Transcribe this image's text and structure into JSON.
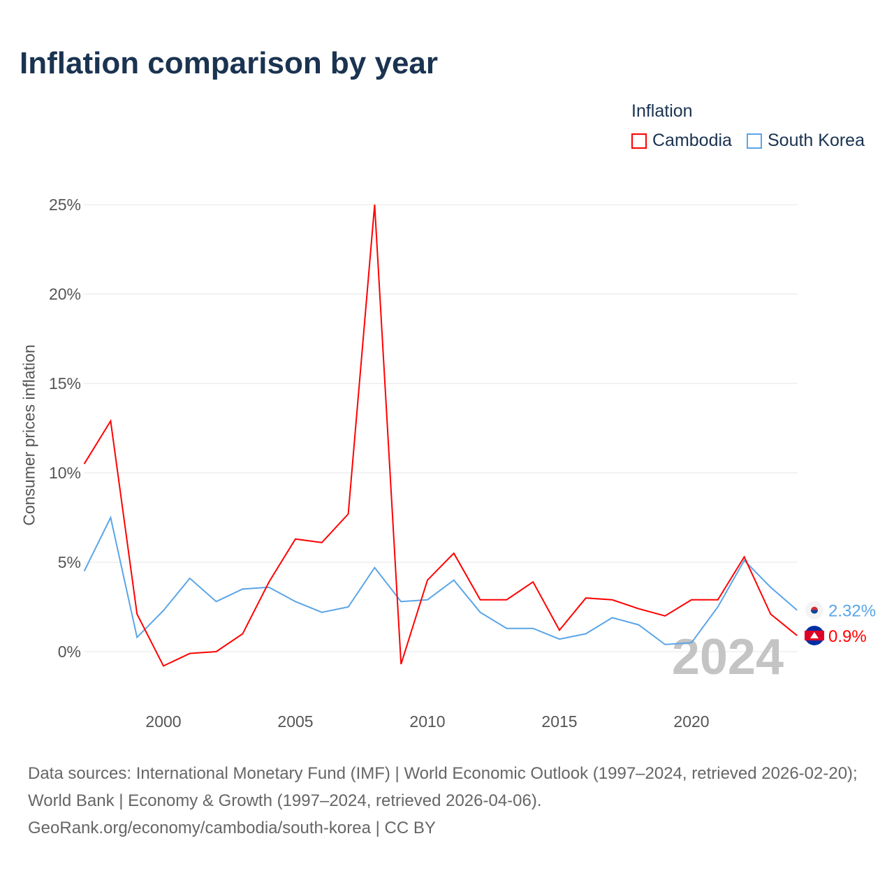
{
  "title": "Inflation comparison by year",
  "legend": {
    "title": "Inflation",
    "items": [
      {
        "label": "Cambodia",
        "color": "#ff0000"
      },
      {
        "label": "South Korea",
        "color": "#5aa5e8"
      }
    ]
  },
  "year_label": "2024",
  "end_labels": {
    "south_korea": "2.32%",
    "cambodia": "0.9%"
  },
  "source_lines": [
    "Data sources: International Monetary Fund (IMF) | World Economic Outlook (1997–2024, retrieved 2026-02-20); World Bank | Economy & Growth (1997–2024, retrieved 2026-04-06).",
    "GeoRank.org/economy/cambodia/south-korea | CC BY"
  ],
  "chart_data": {
    "type": "line",
    "title": "Inflation comparison by year",
    "xlabel": "",
    "ylabel": "Consumer prices inflation",
    "xlim": [
      1997,
      2024
    ],
    "ylim": [
      -2.5,
      25
    ],
    "xticks": [
      2000,
      2005,
      2010,
      2015,
      2020
    ],
    "yticks": [
      0,
      5,
      10,
      15,
      20,
      25
    ],
    "ytick_labels": [
      "0%",
      "5%",
      "10%",
      "15%",
      "20%",
      "25%"
    ],
    "x": [
      1997,
      1998,
      1999,
      2000,
      2001,
      2002,
      2003,
      2004,
      2005,
      2006,
      2007,
      2008,
      2009,
      2010,
      2011,
      2012,
      2013,
      2014,
      2015,
      2016,
      2017,
      2018,
      2019,
      2020,
      2021,
      2022,
      2023,
      2024
    ],
    "series": [
      {
        "name": "Cambodia",
        "color": "#ff0000",
        "values": [
          10.5,
          12.9,
          2.1,
          -0.8,
          -0.1,
          0.0,
          1.0,
          3.9,
          6.3,
          6.1,
          7.7,
          25.0,
          -0.7,
          4.0,
          5.5,
          2.9,
          2.9,
          3.9,
          1.2,
          3.0,
          2.9,
          2.4,
          2.0,
          2.9,
          2.9,
          5.3,
          2.1,
          0.9
        ]
      },
      {
        "name": "South Korea",
        "color": "#5aa5e8",
        "values": [
          4.5,
          7.5,
          0.8,
          2.3,
          4.1,
          2.8,
          3.5,
          3.6,
          2.8,
          2.2,
          2.5,
          4.7,
          2.8,
          2.9,
          4.0,
          2.2,
          1.3,
          1.3,
          0.7,
          1.0,
          1.9,
          1.5,
          0.4,
          0.5,
          2.5,
          5.1,
          3.6,
          2.32
        ]
      }
    ],
    "grid": true,
    "legend_position": "top-right"
  }
}
